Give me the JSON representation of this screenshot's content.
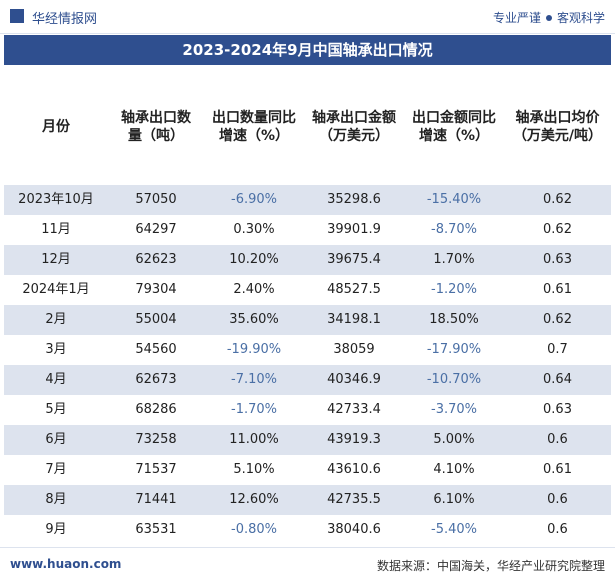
{
  "header": {
    "brand": "华经情报网",
    "slogan_left": "专业严谨",
    "slogan_right": "客观科学"
  },
  "title": "2023-2024年9月中国轴承出口情况",
  "table": {
    "columns": [
      "月份",
      "轴承出口数量（吨）",
      "出口数量同比增速（%）",
      "轴承出口金额（万美元）",
      "出口金额同比增速（%）",
      "轴承出口均价（万美元/吨）"
    ],
    "rows": [
      [
        "2023年10月",
        "57050",
        "-6.90%",
        "35298.6",
        "-15.40%",
        "0.62"
      ],
      [
        "11月",
        "64297",
        "0.30%",
        "39901.9",
        "-8.70%",
        "0.62"
      ],
      [
        "12月",
        "62623",
        "10.20%",
        "39675.4",
        "1.70%",
        "0.63"
      ],
      [
        "2024年1月",
        "79304",
        "2.40%",
        "48527.5",
        "-1.20%",
        "0.61"
      ],
      [
        "2月",
        "55004",
        "35.60%",
        "34198.1",
        "18.50%",
        "0.62"
      ],
      [
        "3月",
        "54560",
        "-19.90%",
        "38059",
        "-17.90%",
        "0.7"
      ],
      [
        "4月",
        "62673",
        "-7.10%",
        "40346.9",
        "-10.70%",
        "0.64"
      ],
      [
        "5月",
        "68286",
        "-1.70%",
        "42733.4",
        "-3.70%",
        "0.63"
      ],
      [
        "6月",
        "73258",
        "11.00%",
        "43919.3",
        "5.00%",
        "0.6"
      ],
      [
        "7月",
        "71537",
        "5.10%",
        "43610.6",
        "4.10%",
        "0.61"
      ],
      [
        "8月",
        "71441",
        "12.60%",
        "42735.5",
        "6.10%",
        "0.6"
      ],
      [
        "9月",
        "63531",
        "-0.80%",
        "38040.6",
        "-5.40%",
        "0.6"
      ]
    ]
  },
  "footer": {
    "site": "www.huaon.com",
    "source": "数据来源：中国海关，华经产业研究院整理"
  }
}
